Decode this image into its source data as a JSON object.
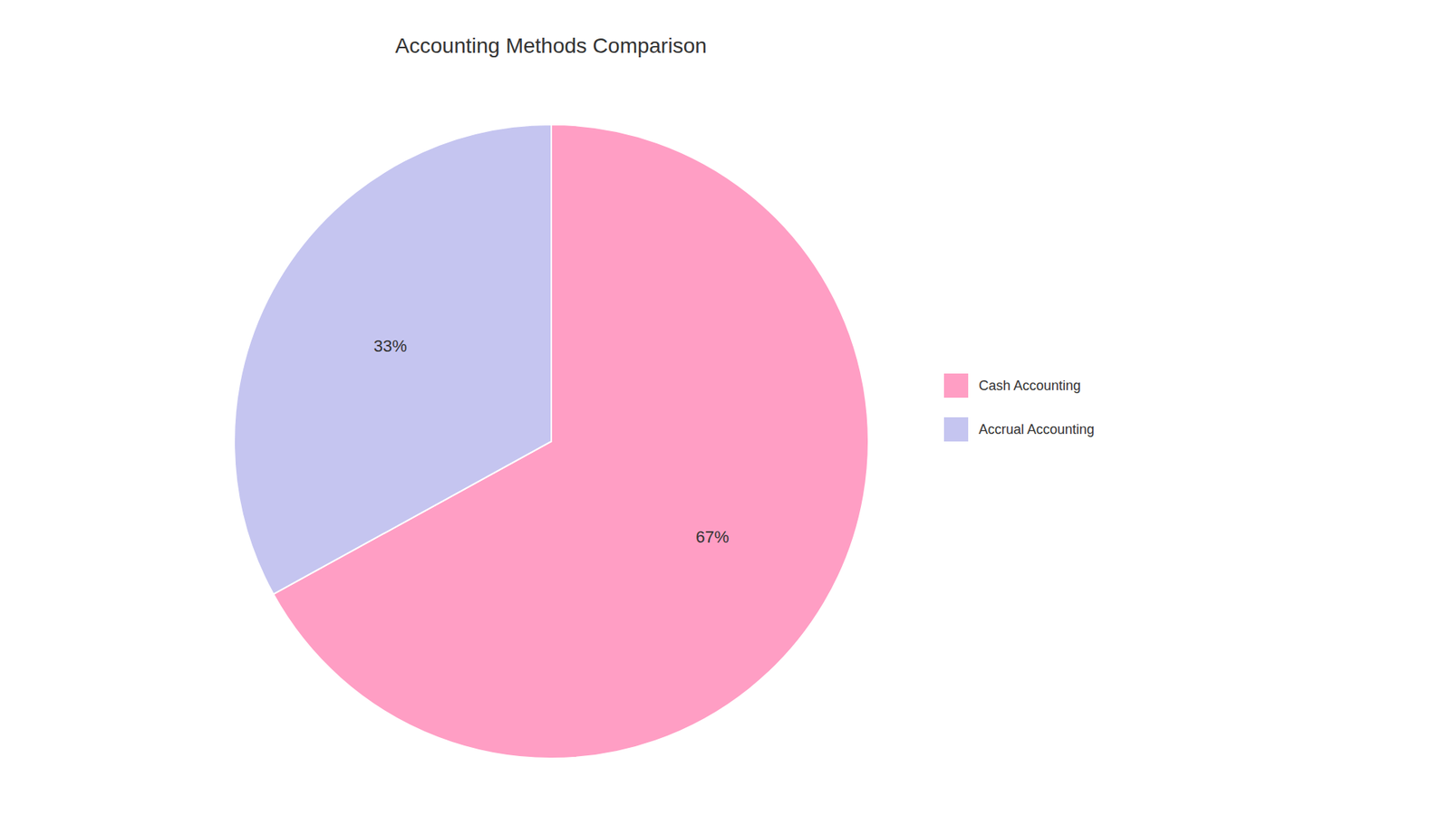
{
  "chart_data": {
    "type": "pie",
    "title": "Accounting Methods Comparison",
    "categories": [
      "Cash Accounting",
      "Accrual Accounting"
    ],
    "values": [
      67,
      33
    ],
    "value_labels": [
      "67%",
      "33%"
    ],
    "data_labels": true,
    "colors": [
      "#FF9EC4",
      "#C5C5F0"
    ],
    "legend": "right"
  }
}
